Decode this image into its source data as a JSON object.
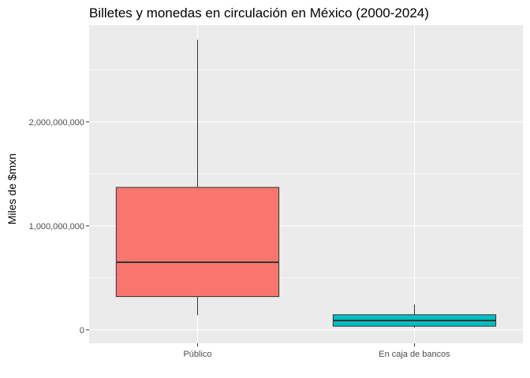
{
  "chart_data": {
    "type": "boxplot",
    "title": "Billetes y monedas en circulación en México (2000-2024)",
    "xlabel": "",
    "ylabel": "Miles de $mxn",
    "categories": [
      "Público",
      "En caja de bancos"
    ],
    "boxes": [
      {
        "category": "Público",
        "min": 140000000,
        "q1": 320000000,
        "median": 650000000,
        "q3": 1370000000,
        "max": 2790000000,
        "color": "#F8766D"
      },
      {
        "category": "En caja de bancos",
        "min": 20000000,
        "q1": 35000000,
        "median": 90000000,
        "q3": 145000000,
        "max": 245000000,
        "color": "#00BFC4"
      }
    ],
    "ylim": [
      -130000000,
      2930000000
    ],
    "y_ticks": [
      0,
      1000000000,
      2000000000
    ],
    "y_tick_labels": [
      "0",
      "1,000,000,000",
      "2,000,000,000"
    ],
    "grid": true,
    "panel_background": "#EBEBEB",
    "grid_color": "#FFFFFF",
    "legend": "none"
  }
}
